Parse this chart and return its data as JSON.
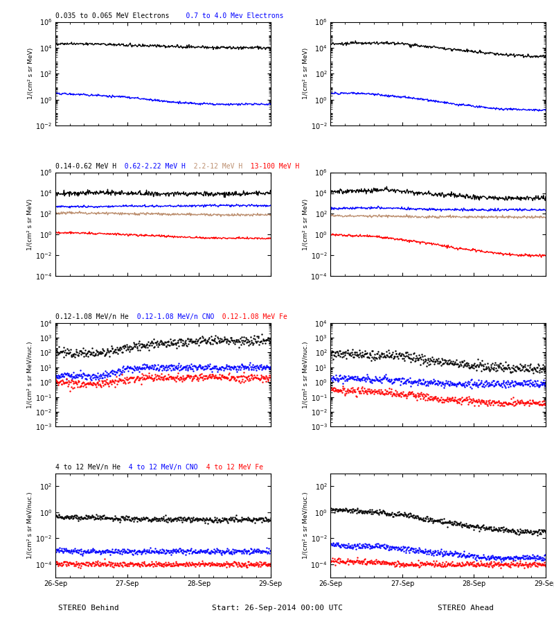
{
  "fig_width": 8.0,
  "fig_height": 9.0,
  "bg_color": "#ffffff",
  "bottom_label_left": "STEREO Behind",
  "bottom_label_center": "Start: 26-Sep-2014 00:00 UTC",
  "bottom_label_right": "STEREO Ahead",
  "xtick_labels": [
    "26-Sep",
    "27-Sep",
    "28-Sep",
    "29-Sep"
  ],
  "panels": [
    {
      "row": 0,
      "col": 0,
      "ylim_log": [
        -2,
        6
      ],
      "ylabel": "1/(cm² s sr MeV)",
      "yticks_log": [
        -2,
        0,
        2,
        4,
        6
      ],
      "title_parts": [
        {
          "text": "0.035 to 0.065 MeV Electrons",
          "color": "black"
        },
        {
          "text": "   0.7 to 4.0 Mev Electrons",
          "color": "blue"
        }
      ],
      "series": [
        {
          "color": "black",
          "log_vals": [
            4.3,
            4.3,
            4.3,
            4.2,
            4.15,
            4.1,
            4.05,
            4.0,
            4.0,
            4.0
          ],
          "noise": 0.06,
          "lw": 1.0
        },
        {
          "color": "blue",
          "log_vals": [
            0.5,
            0.4,
            0.3,
            0.2,
            0.0,
            -0.2,
            -0.3,
            -0.35,
            -0.35,
            -0.35
          ],
          "noise": 0.04,
          "lw": 1.0
        }
      ]
    },
    {
      "row": 0,
      "col": 1,
      "ylim_log": [
        -2,
        6
      ],
      "ylabel": "1/(cm² s sr MeV)",
      "yticks_log": [
        -2,
        0,
        2,
        4,
        6
      ],
      "title_parts": [],
      "series": [
        {
          "color": "black",
          "log_vals": [
            4.3,
            4.35,
            4.4,
            4.3,
            4.1,
            3.9,
            3.7,
            3.5,
            3.4,
            3.3
          ],
          "noise": 0.06,
          "lw": 1.0
        },
        {
          "color": "blue",
          "log_vals": [
            0.5,
            0.5,
            0.4,
            0.2,
            0.0,
            -0.3,
            -0.5,
            -0.7,
            -0.75,
            -0.8
          ],
          "noise": 0.04,
          "lw": 1.0
        }
      ]
    },
    {
      "row": 1,
      "col": 0,
      "ylim_log": [
        -4,
        6
      ],
      "ylabel": "1/(cm² s sr MeV)",
      "yticks_log": [
        -4,
        -2,
        0,
        2,
        4,
        6
      ],
      "title_parts": [
        {
          "text": "0.14-0.62 MeV H",
          "color": "black"
        },
        {
          "text": "   0.62-2.22 MeV H",
          "color": "blue"
        },
        {
          "text": "   2.2-12 MeV H",
          "color": "#bc8f6f"
        },
        {
          "text": "   13-100 MeV H",
          "color": "red"
        }
      ],
      "series": [
        {
          "color": "black",
          "log_vals": [
            3.9,
            4.0,
            4.1,
            4.0,
            3.95,
            3.95,
            3.95,
            3.95,
            4.0,
            4.0
          ],
          "noise": 0.12,
          "lw": 1.0
        },
        {
          "color": "blue",
          "log_vals": [
            2.7,
            2.7,
            2.7,
            2.75,
            2.75,
            2.75,
            2.8,
            2.8,
            2.8,
            2.8
          ],
          "noise": 0.05,
          "lw": 1.0
        },
        {
          "color": "#bc8f6f",
          "log_vals": [
            2.1,
            2.1,
            2.05,
            2.0,
            2.0,
            1.95,
            1.95,
            1.9,
            1.9,
            1.9
          ],
          "noise": 0.06,
          "lw": 1.0
        },
        {
          "color": "red",
          "log_vals": [
            0.2,
            0.15,
            0.1,
            0.0,
            -0.1,
            -0.2,
            -0.3,
            -0.35,
            -0.35,
            -0.35
          ],
          "noise": 0.05,
          "lw": 1.0
        }
      ]
    },
    {
      "row": 1,
      "col": 1,
      "ylim_log": [
        -4,
        6
      ],
      "ylabel": "1/(cm² s sr MeV)",
      "yticks_log": [
        -4,
        -2,
        0,
        2,
        4,
        6
      ],
      "title_parts": [],
      "series": [
        {
          "color": "black",
          "log_vals": [
            4.1,
            4.2,
            4.3,
            4.2,
            4.0,
            3.8,
            3.6,
            3.5,
            3.5,
            3.5
          ],
          "noise": 0.12,
          "lw": 1.0
        },
        {
          "color": "blue",
          "log_vals": [
            2.5,
            2.55,
            2.6,
            2.5,
            2.45,
            2.4,
            2.4,
            2.4,
            2.4,
            2.4
          ],
          "noise": 0.06,
          "lw": 1.0
        },
        {
          "color": "#bc8f6f",
          "log_vals": [
            1.8,
            1.8,
            1.8,
            1.75,
            1.7,
            1.7,
            1.7,
            1.7,
            1.7,
            1.7
          ],
          "noise": 0.06,
          "lw": 1.0
        },
        {
          "color": "red",
          "log_vals": [
            0.0,
            -0.1,
            -0.2,
            -0.5,
            -0.8,
            -1.2,
            -1.5,
            -1.8,
            -2.0,
            -2.0
          ],
          "noise": 0.06,
          "lw": 1.0
        }
      ]
    },
    {
      "row": 2,
      "col": 0,
      "ylim_log": [
        -3,
        4
      ],
      "ylabel": "1/(cm² s sr MeV/nuc.)",
      "yticks_log": [
        -3,
        -2,
        -1,
        0,
        1,
        2,
        3,
        4
      ],
      "title_parts": [
        {
          "text": "0.12-1.08 MeV/n He",
          "color": "black"
        },
        {
          "text": "   0.12-1.08 MeV/n CNO",
          "color": "blue"
        },
        {
          "text": "   0.12-1.08 MeV Fe",
          "color": "red"
        }
      ],
      "series": [
        {
          "color": "black",
          "log_vals": [
            2.1,
            2.0,
            2.0,
            2.3,
            2.6,
            2.7,
            2.8,
            2.8,
            2.8,
            2.8
          ],
          "noise": 0.15,
          "lw": 0,
          "ms": 1.5
        },
        {
          "color": "blue",
          "log_vals": [
            0.5,
            0.4,
            0.4,
            0.9,
            1.0,
            1.0,
            1.0,
            1.0,
            1.0,
            1.0
          ],
          "noise": 0.12,
          "lw": 0,
          "ms": 1.5
        },
        {
          "color": "red",
          "log_vals": [
            0.0,
            -0.1,
            -0.1,
            0.2,
            0.3,
            0.3,
            0.3,
            0.3,
            0.3,
            0.3
          ],
          "noise": 0.12,
          "lw": 0,
          "ms": 1.5
        }
      ]
    },
    {
      "row": 2,
      "col": 1,
      "ylim_log": [
        -3,
        4
      ],
      "ylabel": "1/(cm² s sr MeV/nuc.)",
      "yticks_log": [
        -3,
        -2,
        -1,
        0,
        1,
        2,
        3,
        4
      ],
      "title_parts": [],
      "series": [
        {
          "color": "black",
          "log_vals": [
            2.0,
            1.9,
            1.8,
            1.8,
            1.5,
            1.3,
            1.1,
            1.0,
            0.9,
            0.9
          ],
          "noise": 0.15,
          "lw": 0,
          "ms": 1.5
        },
        {
          "color": "blue",
          "log_vals": [
            0.3,
            0.2,
            0.2,
            0.1,
            0.0,
            -0.1,
            -0.1,
            -0.1,
            -0.1,
            -0.1
          ],
          "noise": 0.12,
          "lw": 0,
          "ms": 1.5
        },
        {
          "color": "red",
          "log_vals": [
            -0.5,
            -0.6,
            -0.6,
            -0.8,
            -1.0,
            -1.2,
            -1.3,
            -1.4,
            -1.4,
            -1.4
          ],
          "noise": 0.12,
          "lw": 0,
          "ms": 1.5
        }
      ]
    },
    {
      "row": 3,
      "col": 0,
      "ylim_log": [
        -5,
        3
      ],
      "ylabel": "1/(cm² s sr MeV/nuc.)",
      "yticks_log": [
        -4,
        -2,
        0,
        2
      ],
      "title_parts": [
        {
          "text": "4 to 12 MeV/n He",
          "color": "black"
        },
        {
          "text": "   4 to 12 MeV/n CNO",
          "color": "blue"
        },
        {
          "text": "   4 to 12 MeV Fe",
          "color": "red"
        }
      ],
      "series": [
        {
          "color": "black",
          "log_vals": [
            -0.3,
            -0.4,
            -0.4,
            -0.5,
            -0.5,
            -0.5,
            -0.55,
            -0.55,
            -0.55,
            -0.55
          ],
          "noise": 0.1,
          "lw": 0,
          "ms": 1.5
        },
        {
          "color": "blue",
          "log_vals": [
            -2.9,
            -3.0,
            -3.0,
            -3.0,
            -3.0,
            -3.0,
            -3.0,
            -3.0,
            -3.0,
            -3.0
          ],
          "noise": 0.1,
          "lw": 0,
          "ms": 1.5
        },
        {
          "color": "red",
          "log_vals": [
            -3.9,
            -4.0,
            -4.0,
            -4.0,
            -4.0,
            -4.0,
            -4.0,
            -4.0,
            -4.0,
            -4.0
          ],
          "noise": 0.1,
          "lw": 0,
          "ms": 1.5
        }
      ]
    },
    {
      "row": 3,
      "col": 1,
      "ylim_log": [
        -5,
        3
      ],
      "ylabel": "1/(cm² s sr MeV/nuc.)",
      "yticks_log": [
        -4,
        -2,
        0,
        2
      ],
      "title_parts": [],
      "series": [
        {
          "color": "black",
          "log_vals": [
            0.2,
            0.1,
            0.0,
            -0.2,
            -0.5,
            -0.8,
            -1.1,
            -1.3,
            -1.5,
            -1.5
          ],
          "noise": 0.1,
          "lw": 0,
          "ms": 1.5
        },
        {
          "color": "blue",
          "log_vals": [
            -2.5,
            -2.6,
            -2.6,
            -2.8,
            -3.0,
            -3.2,
            -3.4,
            -3.5,
            -3.5,
            -3.5
          ],
          "noise": 0.1,
          "lw": 0,
          "ms": 1.5
        },
        {
          "color": "red",
          "log_vals": [
            -3.7,
            -3.8,
            -3.8,
            -4.0,
            -4.0,
            -4.0,
            -4.0,
            -4.0,
            -4.0,
            -4.0
          ],
          "noise": 0.1,
          "lw": 0,
          "ms": 1.5
        }
      ]
    }
  ]
}
